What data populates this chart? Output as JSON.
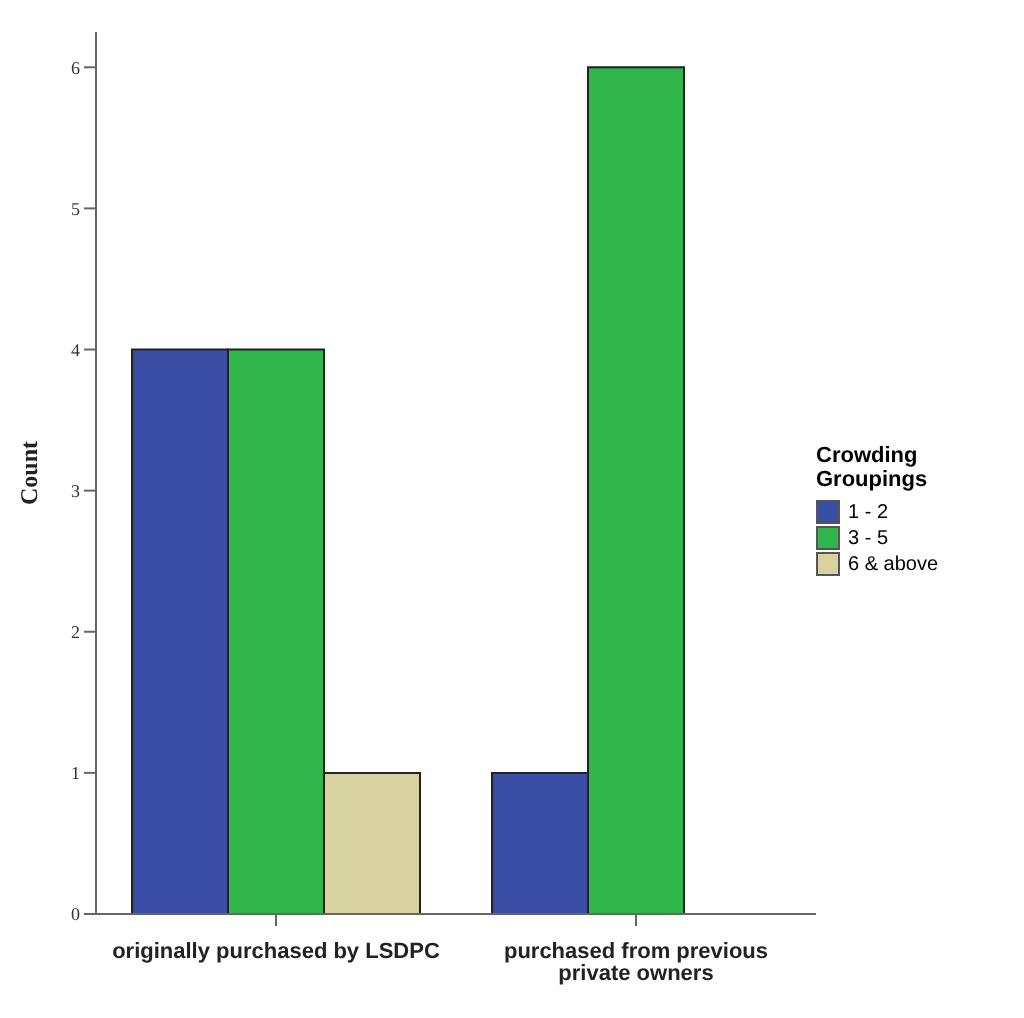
{
  "chart_data": {
    "type": "bar",
    "ylabel": "Count",
    "legend_title": "Crowding Groupings",
    "categories": [
      "originally purchased by LSDPC",
      "purchased from previous private owners"
    ],
    "series": [
      {
        "name": "1 - 2",
        "color": "#3b4ea6",
        "values": [
          4,
          1
        ]
      },
      {
        "name": "3 - 5",
        "color": "#2fb54a",
        "values": [
          4,
          6
        ]
      },
      {
        "name": "6 & above",
        "color": "#d8d2a0",
        "values": [
          1,
          null
        ]
      }
    ],
    "ylim": [
      0,
      6.25
    ],
    "yticks": [
      0,
      1,
      2,
      3,
      4,
      5,
      6
    ],
    "grid": false,
    "legend": "right"
  }
}
